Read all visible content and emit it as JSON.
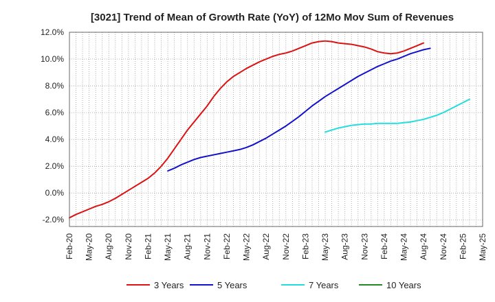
{
  "chart_data": {
    "type": "line",
    "title": "[3021]  Trend of Mean of Growth Rate (YoY) of 12Mo Mov Sum of Revenues",
    "xlabel": "",
    "ylabel": "",
    "x_tick_labels": [
      "Feb-20",
      "May-20",
      "Aug-20",
      "Nov-20",
      "Feb-21",
      "May-21",
      "Aug-21",
      "Nov-21",
      "Feb-22",
      "May-22",
      "Aug-22",
      "Nov-22",
      "Feb-23",
      "May-23",
      "Aug-23",
      "Nov-23",
      "Feb-24",
      "May-24",
      "Aug-24",
      "Nov-24",
      "Feb-25",
      "May-25"
    ],
    "y_tick_labels": [
      "-2.0%",
      "0.0%",
      "2.0%",
      "4.0%",
      "6.0%",
      "8.0%",
      "10.0%",
      "12.0%"
    ],
    "y_ticks": [
      -2,
      0,
      2,
      4,
      6,
      8,
      10,
      12
    ],
    "ylim": [
      -2.5,
      12
    ],
    "grid": true,
    "legend_position": "bottom",
    "series": [
      {
        "name": "3 Years",
        "color": "#dd1111",
        "start_month": 0,
        "values": [
          -1.85,
          -1.6,
          -1.4,
          -1.2,
          -1.0,
          -0.85,
          -0.65,
          -0.4,
          -0.1,
          0.2,
          0.5,
          0.8,
          1.1,
          1.5,
          2.0,
          2.6,
          3.3,
          4.0,
          4.7,
          5.3,
          5.9,
          6.5,
          7.2,
          7.8,
          8.3,
          8.7,
          9.0,
          9.3,
          9.55,
          9.8,
          10.0,
          10.2,
          10.35,
          10.45,
          10.6,
          10.8,
          11.0,
          11.2,
          11.3,
          11.35,
          11.3,
          11.2,
          11.15,
          11.1,
          11.0,
          10.9,
          10.75,
          10.55,
          10.45,
          10.4,
          10.45,
          10.6,
          10.8,
          11.0,
          11.2
        ]
      },
      {
        "name": "5 Years",
        "color": "#1111cc",
        "start_month": 15,
        "values": [
          1.65,
          1.85,
          2.1,
          2.3,
          2.5,
          2.65,
          2.75,
          2.85,
          2.95,
          3.05,
          3.15,
          3.25,
          3.4,
          3.6,
          3.85,
          4.1,
          4.4,
          4.7,
          5.0,
          5.35,
          5.7,
          6.1,
          6.5,
          6.85,
          7.2,
          7.5,
          7.8,
          8.1,
          8.4,
          8.7,
          8.95,
          9.2,
          9.45,
          9.65,
          9.85,
          10.0,
          10.2,
          10.4,
          10.55,
          10.7,
          10.8
        ]
      },
      {
        "name": "7 Years",
        "color": "#22dddd",
        "start_month": 39,
        "values": [
          4.55,
          4.7,
          4.85,
          4.95,
          5.05,
          5.1,
          5.15,
          5.15,
          5.2,
          5.2,
          5.2,
          5.2,
          5.25,
          5.3,
          5.4,
          5.5,
          5.65,
          5.8,
          6.0,
          6.25,
          6.5,
          6.75,
          7.0
        ]
      },
      {
        "name": "10 Years",
        "color": "#228822",
        "start_month": 0,
        "values": []
      }
    ]
  }
}
